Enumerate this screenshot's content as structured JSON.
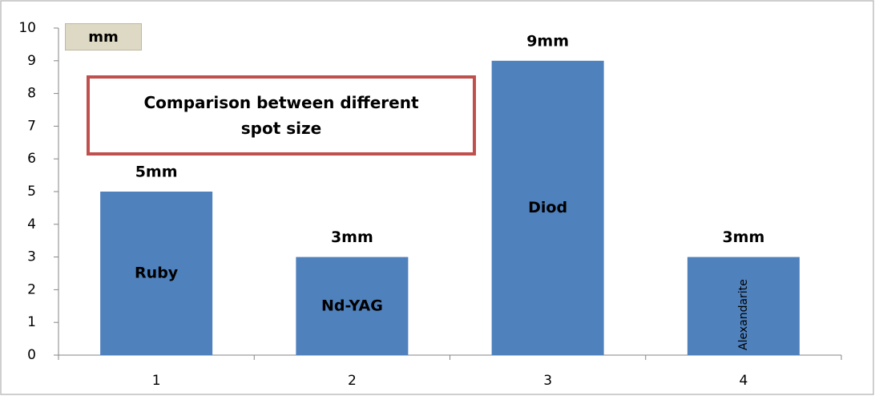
{
  "chart_data": {
    "type": "bar",
    "ylabel": "mm",
    "annotation": "Comparison between different spot size",
    "categories": [
      "1",
      "2",
      "3",
      "4"
    ],
    "values": [
      5,
      3,
      9,
      3
    ],
    "value_labels": [
      "5mm",
      "3mm",
      "9mm",
      "3mm"
    ],
    "bar_labels": [
      "Ruby",
      "Nd-YAG",
      "Diod",
      "Alexandarite"
    ],
    "bar_label_rotation": [
      0,
      0,
      0,
      -90
    ],
    "color": "#4f81bd",
    "ylim": [
      0,
      10
    ],
    "yticks": [
      0,
      1,
      2,
      3,
      4,
      5,
      6,
      7,
      8,
      9,
      10
    ],
    "grid": false
  }
}
